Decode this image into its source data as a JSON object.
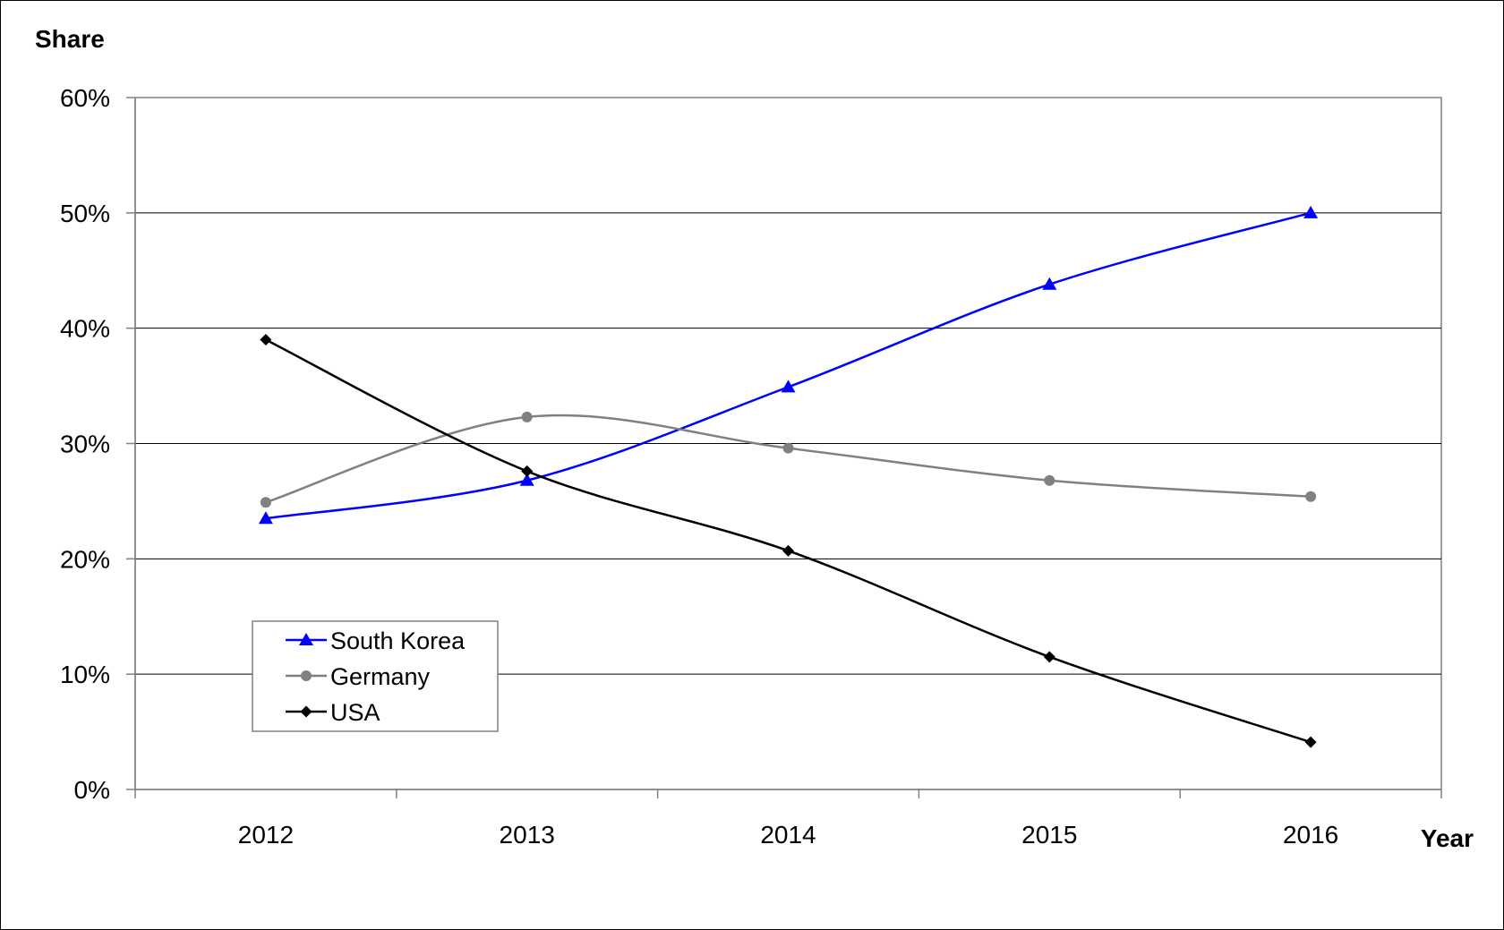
{
  "chart_data": {
    "type": "line",
    "ylabel": "Share",
    "xlabel": "Year",
    "categories": [
      "2012",
      "2013",
      "2014",
      "2015",
      "2016"
    ],
    "ylim": [
      0,
      0.6
    ],
    "yticks": [
      0,
      0.1,
      0.2,
      0.3,
      0.4,
      0.5,
      0.6
    ],
    "ytick_labels": [
      "0%",
      "10%",
      "20%",
      "30%",
      "40%",
      "50%",
      "60%"
    ],
    "grid": "horizontal",
    "legend_position": "lower-left",
    "smooth": true,
    "series": [
      {
        "name": "South Korea",
        "values": [
          0.235,
          0.268,
          0.349,
          0.438,
          0.5
        ],
        "color": "#0000ff",
        "marker": "triangle"
      },
      {
        "name": "Germany",
        "values": [
          0.249,
          0.323,
          0.296,
          0.268,
          0.254
        ],
        "color": "#808080",
        "marker": "circle"
      },
      {
        "name": "USA",
        "values": [
          0.39,
          0.276,
          0.207,
          0.115,
          0.041
        ],
        "color": "#000000",
        "marker": "diamond"
      }
    ]
  }
}
